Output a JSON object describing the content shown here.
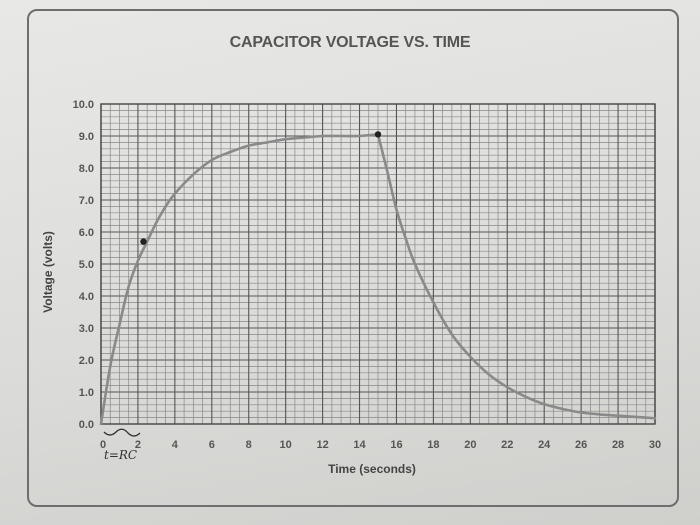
{
  "chart_data": {
    "type": "line",
    "title": "CAPACITOR VOLTAGE VS. TIME",
    "xlabel": "Time (seconds)",
    "ylabel": "Voltage (volts)",
    "xlim": [
      0,
      30
    ],
    "ylim": [
      0,
      10
    ],
    "x_ticks": [
      "0",
      "2",
      "4",
      "6",
      "8",
      "10",
      "12",
      "14",
      "16",
      "18",
      "20",
      "22",
      "24",
      "26",
      "28",
      "30"
    ],
    "y_ticks": [
      "0.0",
      "1.0",
      "2.0",
      "3.0",
      "4.0",
      "5.0",
      "6.0",
      "7.0",
      "8.0",
      "9.0",
      "10.0"
    ],
    "grid": true,
    "line_color": "#8a8a8a",
    "series": [
      {
        "x": [
          0,
          0.5,
          1,
          1.5,
          2,
          2.5,
          3,
          3.5,
          4,
          5,
          6,
          7,
          8,
          9,
          10,
          11,
          12,
          13,
          14,
          15,
          15.5,
          16,
          16.5,
          17,
          18,
          19,
          20,
          21,
          22,
          23,
          24,
          25,
          26,
          27,
          28,
          29,
          30
        ],
        "y": [
          0.0,
          1.8,
          3.1,
          4.3,
          5.1,
          5.7,
          6.3,
          6.8,
          7.2,
          7.8,
          8.25,
          8.5,
          8.7,
          8.8,
          8.9,
          8.95,
          9.0,
          9.0,
          9.0,
          9.05,
          7.9,
          6.7,
          5.8,
          5.0,
          3.8,
          2.8,
          2.1,
          1.55,
          1.15,
          0.85,
          0.62,
          0.47,
          0.36,
          0.3,
          0.26,
          0.22,
          0.18
        ]
      }
    ],
    "marked_points": [
      {
        "x": 2.3,
        "y": 5.7
      },
      {
        "x": 15.0,
        "y": 9.05
      }
    ],
    "annotation": "t=RC"
  }
}
